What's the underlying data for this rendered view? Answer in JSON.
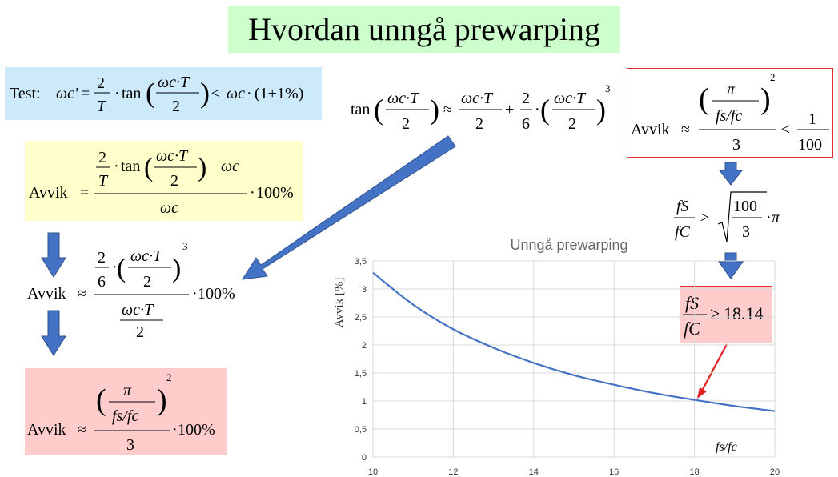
{
  "title": "Hvordan unngå prewarping",
  "formulas": {
    "avvik_word": "Avvik",
    "test_word": "Test:",
    "approx": "≈",
    "leq": "≤",
    "geq": "≥",
    "minus": "−",
    "plus": "+",
    "cdot": "·",
    "eq": "=",
    "percent_100": "100%",
    "one_plus_one_percent": "(1+1%)",
    "two": "2",
    "three": "3",
    "six": "6",
    "one": "1",
    "hundred": "100",
    "pi": "π",
    "tan": "tan",
    "omega_c": "ωc",
    "omega_c_T": "ωc·T",
    "omega_c_prime": "ωc'",
    "fs_over_fc": "fs/fc",
    "fs": "fS",
    "fc": "fC",
    "T": "T",
    "result_value": "18.14"
  },
  "chart_data": {
    "type": "line",
    "title": "Unngå prewarping",
    "xlabel": "fs/fc",
    "ylabel": "Avvik [%]",
    "xlim": [
      10,
      20
    ],
    "ylim": [
      0,
      3.5
    ],
    "x_ticks": [
      "10",
      "12",
      "14",
      "16",
      "18",
      "20"
    ],
    "y_ticks": [
      "0",
      "0,5",
      "1",
      "1,5",
      "2",
      "2,5",
      "3",
      "3,5"
    ],
    "grid": true,
    "x": [
      10,
      11,
      12,
      13,
      14,
      15,
      16,
      17,
      18,
      19,
      20
    ],
    "values": [
      3.29,
      2.72,
      2.28,
      1.95,
      1.68,
      1.46,
      1.29,
      1.14,
      1.02,
      0.91,
      0.82
    ],
    "colors": {
      "line": "#4472c4"
    }
  },
  "colors": {
    "arrow_blue": "#4472c4",
    "annotation_red": "#e02020"
  }
}
